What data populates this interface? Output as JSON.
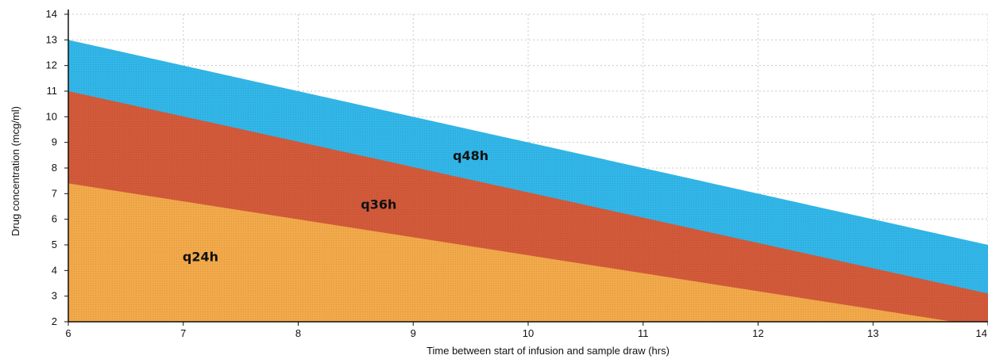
{
  "chart_data": {
    "type": "area",
    "title": "",
    "xlabel": "Time between start of infusion and sample draw (hrs)",
    "ylabel": "Drug concentration (mcg/ml)",
    "xlim": [
      6,
      14
    ],
    "ylim": [
      2,
      14
    ],
    "x_ticks": [
      "6",
      "7",
      "8",
      "9",
      "10",
      "11",
      "12",
      "13",
      "14"
    ],
    "y_ticks": [
      "2",
      "3",
      "4",
      "5",
      "6",
      "7",
      "8",
      "9",
      "10",
      "11",
      "12",
      "13",
      "14"
    ],
    "grid": true,
    "series": [
      {
        "name": "q24h",
        "color": "#f2a94a",
        "label_at": [
          7.15,
          4.55
        ],
        "points": [
          [
            6,
            7.4
          ],
          [
            13.7,
            2.0
          ],
          [
            14,
            2.0
          ]
        ]
      },
      {
        "name": "q36h",
        "color": "#d25a3a",
        "label_at": [
          8.7,
          6.6
        ],
        "points": [
          [
            6,
            11.0
          ],
          [
            14,
            3.1
          ]
        ]
      },
      {
        "name": "q48h",
        "color": "#32b6e8",
        "label_at": [
          9.5,
          8.5
        ],
        "points": [
          [
            6,
            13.0
          ],
          [
            14,
            5.0
          ]
        ]
      }
    ]
  }
}
